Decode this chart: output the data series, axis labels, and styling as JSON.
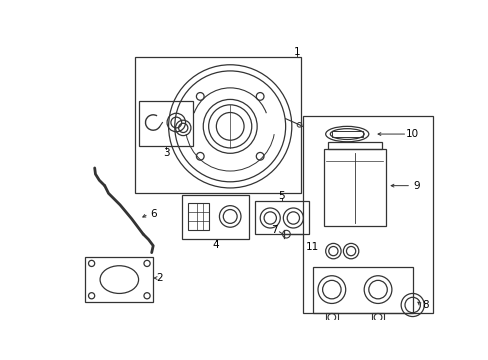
{
  "background_color": "#ffffff",
  "line_color": "#333333",
  "text_color": "#000000",
  "fig_width": 4.89,
  "fig_height": 3.6,
  "dpi": 100
}
